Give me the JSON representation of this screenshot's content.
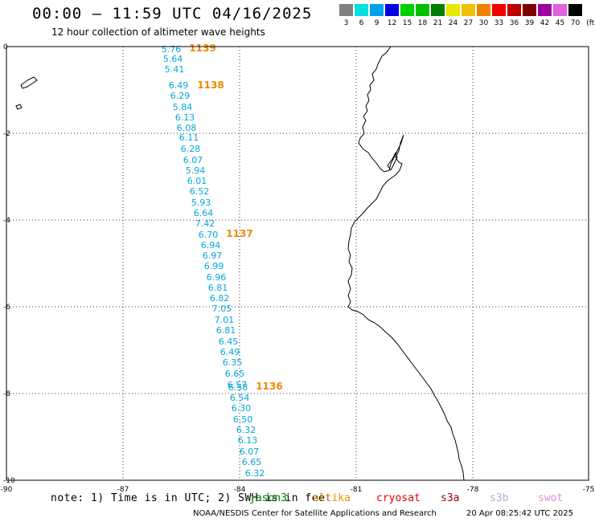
{
  "header": {
    "title": "00:00 – 11:59 UTC 04/16/2025",
    "subtitle": "12 hour collection of altimeter wave heights"
  },
  "legend": {
    "unit": "(ft)",
    "items": [
      {
        "label": "3",
        "color": "#808080"
      },
      {
        "label": "6",
        "color": "#00e0e0"
      },
      {
        "label": "9",
        "color": "#00a0f0"
      },
      {
        "label": "12",
        "color": "#0000e0"
      },
      {
        "label": "15",
        "color": "#00d000"
      },
      {
        "label": "18",
        "color": "#00c000"
      },
      {
        "label": "21",
        "color": "#008000"
      },
      {
        "label": "24",
        "color": "#e8e800"
      },
      {
        "label": "27",
        "color": "#f0c000"
      },
      {
        "label": "30",
        "color": "#f08000"
      },
      {
        "label": "33",
        "color": "#f00000"
      },
      {
        "label": "36",
        "color": "#c00000"
      },
      {
        "label": "39",
        "color": "#800000"
      },
      {
        "label": "42",
        "color": "#a000a0"
      },
      {
        "label": "45",
        "color": "#e060e0"
      },
      {
        "label": "70",
        "color": "#000000"
      }
    ]
  },
  "map": {
    "lat_labels": [
      "0",
      "-2",
      "-4",
      "-6",
      "-8",
      "-10"
    ],
    "lon_labels": [
      "-90",
      "-87",
      "-84",
      "-81",
      "-78",
      "-75"
    ],
    "track_color": "#00a8d8",
    "pass_color": "#f08800",
    "pass_labels": [
      "1139",
      "1138",
      "1137",
      "1136"
    ],
    "wave_values": [
      "5.76",
      "5.64",
      "5.41",
      "6.49",
      "6.29",
      "5.84",
      "6.13",
      "6.08",
      "6.11",
      "6.28",
      "6.07",
      "5.94",
      "6.01",
      "6.52",
      "5.93",
      "6.64",
      "7.42",
      "6.70",
      "6.94",
      "6.97",
      "6.99",
      "6.96",
      "6.81",
      "6.82",
      "7.05",
      "7.01",
      "6.81",
      "6.45",
      "6.49",
      "6.35",
      "6.65",
      "6.57",
      "6.58",
      "6.54",
      "6.30",
      "6.50",
      "6.32",
      "6.13",
      "6.07",
      "6.65",
      "6.32"
    ]
  },
  "footer": {
    "note": "note: 1) Time is in UTC; 2) SWH is in feet",
    "satellites": [
      {
        "name": "jason3",
        "color": "#008000"
      },
      {
        "name": "altika",
        "color": "#f09000"
      },
      {
        "name": "cryosat",
        "color": "#e00000"
      },
      {
        "name": "s3a",
        "color": "#a00000"
      },
      {
        "name": "s3b",
        "color": "#c0a0e0"
      },
      {
        "name": "swot",
        "color": "#e090e0"
      }
    ],
    "credit": "NOAA/NESDIS Center for Satellite Applications and Research",
    "timestamp": "20 Apr 08:25:42 UTC 2025"
  }
}
